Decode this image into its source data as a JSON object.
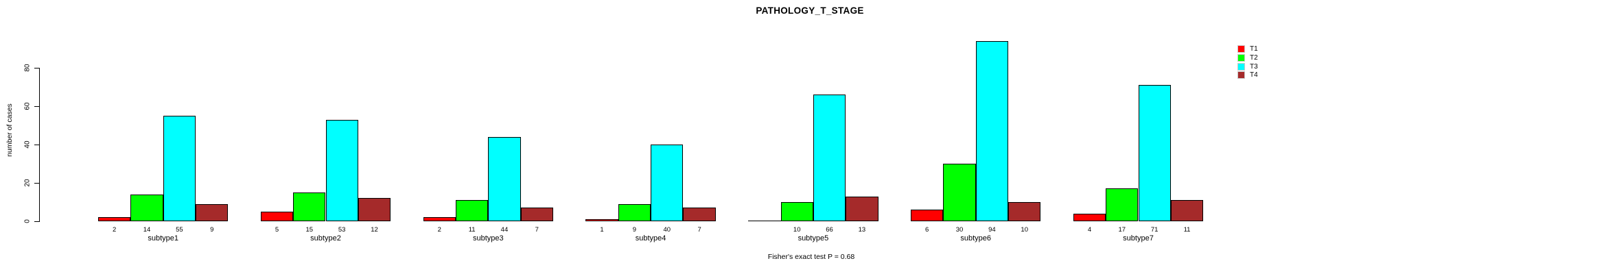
{
  "chart_data": {
    "type": "bar",
    "title": "PATHOLOGY_T_STAGE",
    "ylabel": "number of cases",
    "xlabel": "",
    "caption": "Fisher's exact test P = 0.68",
    "categories": [
      "subtype1",
      "subtype2",
      "subtype3",
      "subtype4",
      "subtype5",
      "subtype6",
      "subtype7"
    ],
    "series": [
      {
        "name": "T1",
        "color": "#ff0000",
        "values": [
          2,
          5,
          2,
          1,
          0,
          6,
          4
        ]
      },
      {
        "name": "T2",
        "color": "#00ff00",
        "values": [
          14,
          15,
          11,
          9,
          10,
          30,
          17
        ]
      },
      {
        "name": "T3",
        "color": "#00ffff",
        "values": [
          55,
          53,
          44,
          40,
          66,
          94,
          71
        ]
      },
      {
        "name": "T4",
        "color": "#a52a2a",
        "values": [
          9,
          12,
          7,
          7,
          13,
          10,
          11
        ]
      }
    ],
    "yticks": [
      0,
      20,
      40,
      60,
      80
    ],
    "ylim": [
      0,
      80
    ],
    "grid": false,
    "legend_position": "top-right",
    "value_labels_shown": true,
    "zero_value_label_hidden": true,
    "bar_border_color": "#000000",
    "background_color": "#ffffff"
  }
}
